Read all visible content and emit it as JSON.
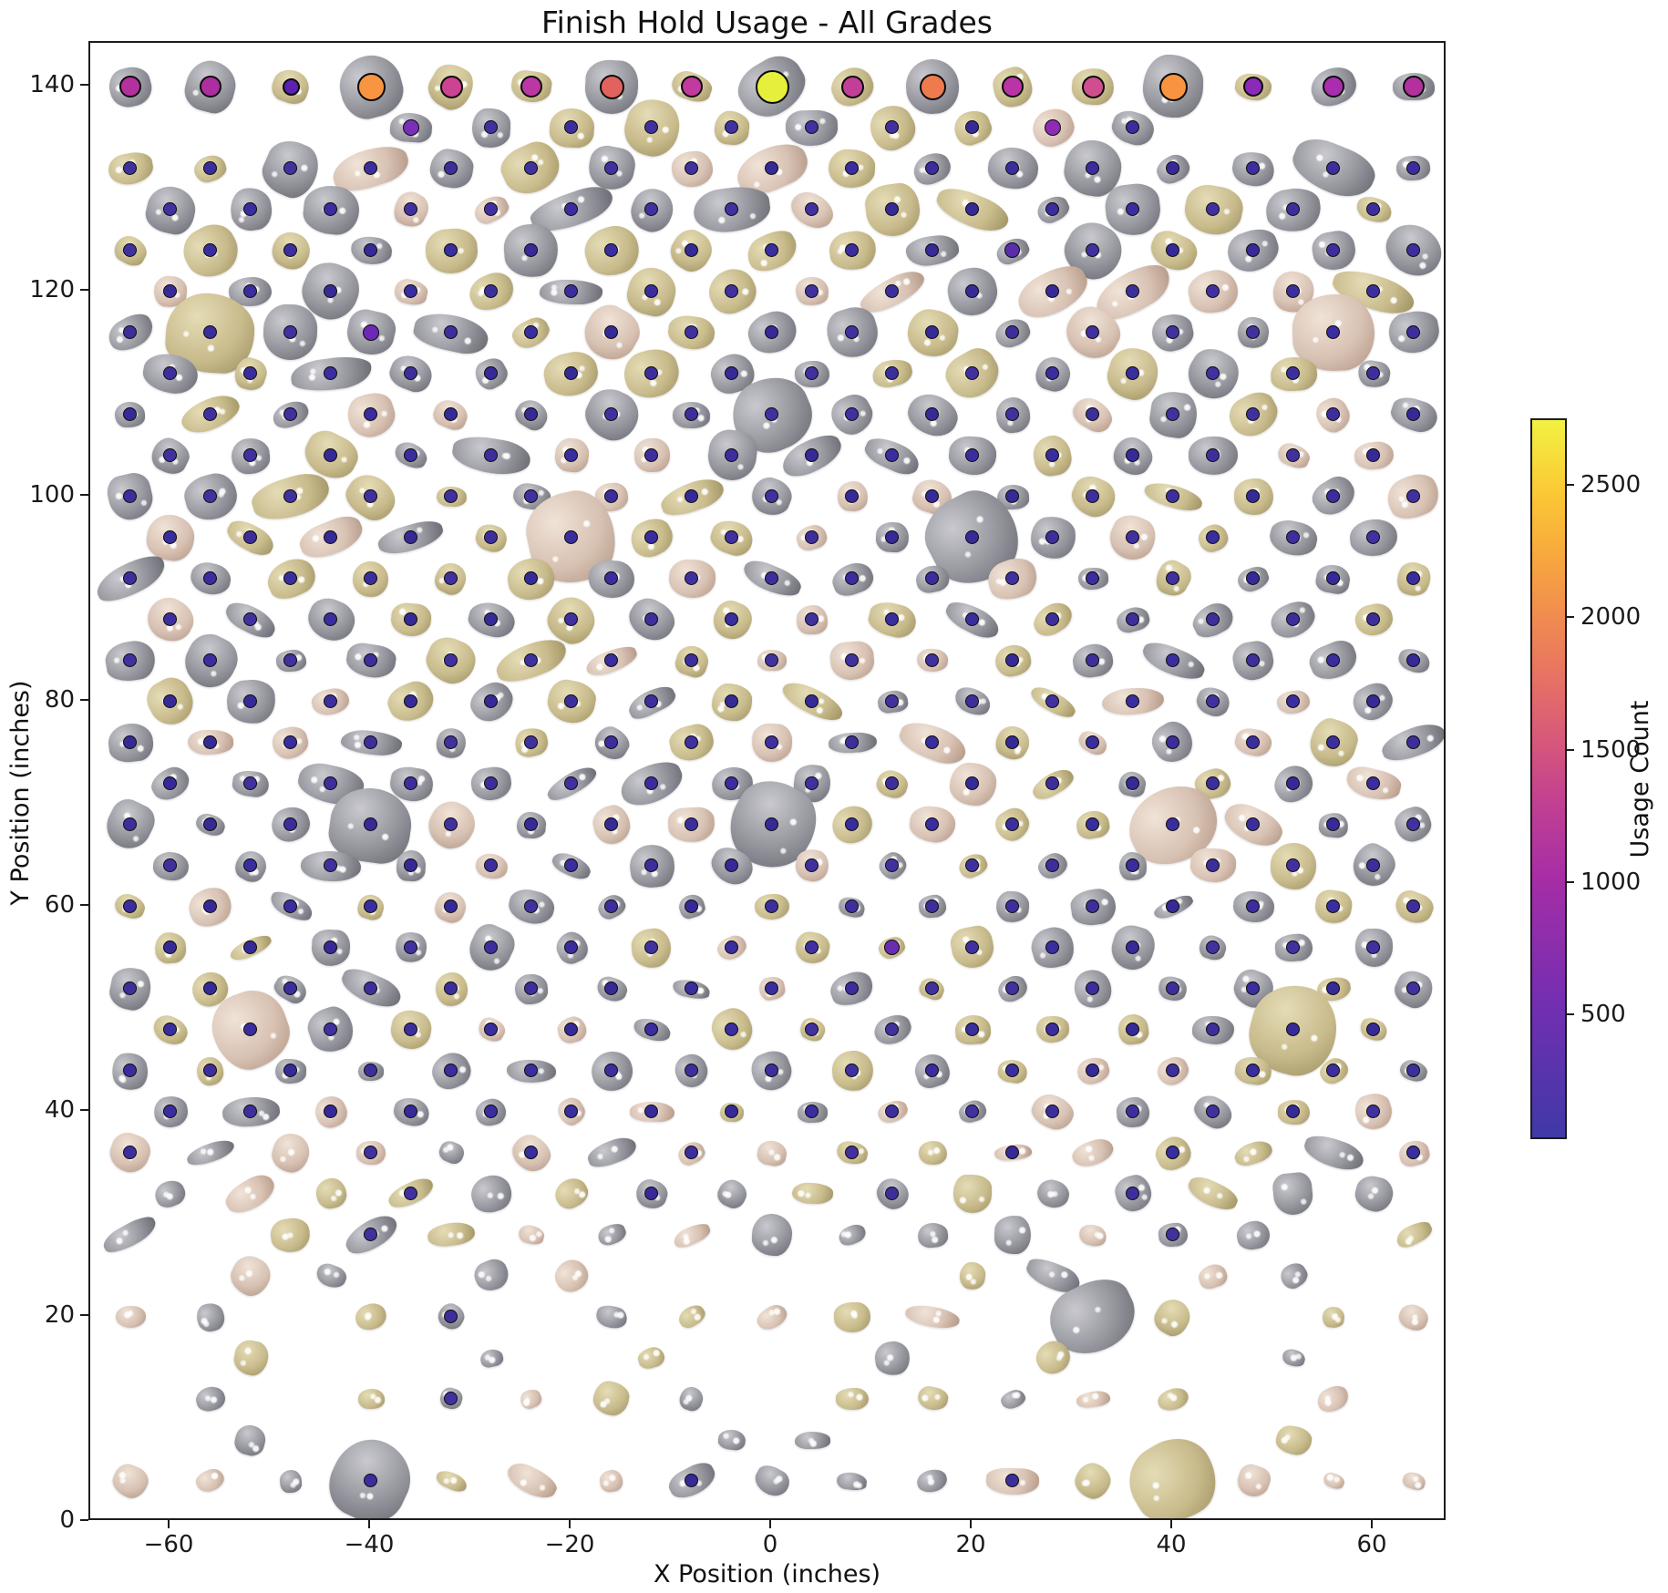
{
  "chart_data": {
    "type": "scatter",
    "title": "Finish Hold Usage - All Grades",
    "xlabel": "X Position (inches)",
    "ylabel": "Y Position (inches)",
    "xlim": [
      -68,
      67.5
    ],
    "ylim": [
      0,
      144
    ],
    "x_ticks": [
      -60,
      -40,
      -20,
      0,
      20,
      40,
      60
    ],
    "y_ticks": [
      0,
      20,
      40,
      60,
      80,
      100,
      120,
      140
    ],
    "grid": false,
    "colorbar": {
      "label": "Usage Count",
      "ticks": [
        500,
        1000,
        1500,
        2000,
        2500
      ],
      "vmin": 30,
      "vmax": 2750,
      "gradient": [
        [
          0,
          "#3f39a6"
        ],
        [
          0.18,
          "#712fb2"
        ],
        [
          0.36,
          "#a62da6"
        ],
        [
          0.47,
          "#c24191"
        ],
        [
          0.54,
          "#d4547e"
        ],
        [
          0.63,
          "#e56f66"
        ],
        [
          0.72,
          "#f08a50"
        ],
        [
          0.82,
          "#f8ab3c"
        ],
        [
          0.9,
          "#fbc935"
        ],
        [
          1,
          "#f2f241"
        ]
      ]
    },
    "hold_palette": {
      "gray": {
        "base": "#94949c",
        "light": "#c9c9cf",
        "dark": "#66666f"
      },
      "tan": {
        "base": "#c8bb8c",
        "light": "#e5dcb6",
        "dark": "#9d8f5e"
      },
      "pink": {
        "base": "#d7c1b2",
        "light": "#f0e3d7",
        "dark": "#b09381"
      }
    },
    "dot_colors": [
      "#3a2d9d",
      "#362a97",
      "#41319f",
      "#3d2f9b"
    ],
    "dot_edge_color": "#0b0b0b",
    "finish_holds": [
      {
        "x": -64,
        "y": 140,
        "usage": 950,
        "color": "#b5309f",
        "r": 10,
        "hold": "gray",
        "size": 46
      },
      {
        "x": -56,
        "y": 140,
        "usage": 900,
        "color": "#ad2f9f",
        "r": 10,
        "hold": "gray",
        "size": 54
      },
      {
        "x": -48,
        "y": 140,
        "usage": 420,
        "color": "#5b21b0",
        "r": 7.5,
        "hold": "tan",
        "size": 40
      },
      {
        "x": -40,
        "y": 140,
        "usage": 2100,
        "color": "#f89541",
        "r": 13.5,
        "hold": "gray",
        "size": 68
      },
      {
        "x": -32,
        "y": 140,
        "usage": 1200,
        "color": "#cc4394",
        "r": 10.5,
        "hold": "tan",
        "size": 46
      },
      {
        "x": -24,
        "y": 140,
        "usage": 1000,
        "color": "#bb37a4",
        "r": 10,
        "hold": "tan",
        "size": 44
      },
      {
        "x": -16,
        "y": 140,
        "usage": 1600,
        "color": "#e2635e",
        "r": 11.5,
        "hold": "gray",
        "size": 58
      },
      {
        "x": -8,
        "y": 140,
        "usage": 1050,
        "color": "#c13a9e",
        "r": 10,
        "hold": "tan",
        "size": 44
      },
      {
        "x": 0,
        "y": 140,
        "usage": 2750,
        "color": "#e6ef3c",
        "r": 16.5,
        "hold": "gray",
        "size": 74
      },
      {
        "x": 8,
        "y": 140,
        "usage": 1100,
        "color": "#c33e97",
        "r": 10.5,
        "hold": "tan",
        "size": 46
      },
      {
        "x": 16,
        "y": 140,
        "usage": 1800,
        "color": "#ee7b4e",
        "r": 12.5,
        "hold": "gray",
        "size": 58
      },
      {
        "x": 24,
        "y": 140,
        "usage": 1000,
        "color": "#b934a6",
        "r": 10,
        "hold": "tan",
        "size": 42
      },
      {
        "x": 32,
        "y": 140,
        "usage": 1300,
        "color": "#d04e90",
        "r": 10.5,
        "hold": "tan",
        "size": 46
      },
      {
        "x": 40,
        "y": 140,
        "usage": 2050,
        "color": "#f89440",
        "r": 13.5,
        "hold": "gray",
        "size": 66
      },
      {
        "x": 48,
        "y": 140,
        "usage": 650,
        "color": "#8b2ab8",
        "r": 9,
        "hold": "tan",
        "size": 40
      },
      {
        "x": 56,
        "y": 140,
        "usage": 950,
        "color": "#ab2daf",
        "r": 10,
        "hold": "gray",
        "size": 50
      },
      {
        "x": 64,
        "y": 140,
        "usage": 950,
        "color": "#b5309f",
        "r": 10,
        "hold": "gray",
        "size": 46
      }
    ],
    "grid_rows": [
      {
        "y": 136,
        "xs": [
          -36,
          -28,
          -20,
          -12,
          -4,
          4,
          12,
          20,
          28,
          36
        ],
        "dots": "all",
        "med": [
          [
            -36,
            "#7b2fb6",
            8,
            560
          ],
          [
            28,
            "#8e2bb2",
            8,
            620
          ]
        ]
      },
      {
        "y": 132,
        "xs": "E",
        "dots": "all"
      },
      {
        "y": 128,
        "xs": "O",
        "dots": "all"
      },
      {
        "y": 124,
        "xs": "E",
        "dots": "all",
        "med": [
          [
            24,
            "#5a2daa",
            7.5,
            430
          ]
        ]
      },
      {
        "y": 120,
        "xs": "O",
        "dots": "all"
      },
      {
        "y": 116,
        "xs": "E",
        "dots": "all",
        "med": [
          [
            -40,
            "#6d28b5",
            8,
            500
          ]
        ]
      },
      {
        "y": 112,
        "xs": "O",
        "dots": "all"
      },
      {
        "y": 108,
        "xs": "E",
        "dots": "all"
      },
      {
        "y": 104,
        "xs": "O",
        "dots": "all"
      },
      {
        "y": 100,
        "xs": "E",
        "dots": "all"
      },
      {
        "y": 96,
        "xs": "O",
        "dots": "all"
      },
      {
        "y": 92,
        "xs": "E",
        "dots": "all"
      },
      {
        "y": 88,
        "xs": "O",
        "dots": "all"
      },
      {
        "y": 84,
        "xs": "E",
        "dots": "all"
      },
      {
        "y": 80,
        "xs": "O",
        "dots": "all"
      },
      {
        "y": 76,
        "xs": "E",
        "dots": "all"
      },
      {
        "y": 72,
        "xs": "O",
        "dots": "all"
      },
      {
        "y": 68,
        "xs": "E",
        "dots": "all"
      },
      {
        "y": 64,
        "xs": "O",
        "dots": "all"
      },
      {
        "y": 60,
        "xs": "E",
        "dots": "all"
      },
      {
        "y": 56,
        "xs": "O",
        "dots": "all",
        "med": [
          [
            12,
            "#6a2db0",
            7.5,
            480
          ]
        ]
      },
      {
        "y": 52,
        "xs": "E",
        "dots": "all"
      },
      {
        "y": 48,
        "xs": "O",
        "dots": "all"
      },
      {
        "y": 44,
        "xs": "E",
        "dots": "all"
      },
      {
        "y": 40,
        "xs": "O",
        "dots": "all"
      },
      {
        "y": 36,
        "xs": "E",
        "dots": [
          -64,
          -40,
          -24,
          -8,
          8,
          24,
          40,
          64
        ]
      },
      {
        "y": 32,
        "xs": "O",
        "dots": [
          -36,
          -12,
          12,
          36
        ]
      },
      {
        "y": 28,
        "xs": [
          -64,
          -48,
          -40,
          -32,
          -24,
          -16,
          -8,
          0,
          8,
          16,
          24,
          32,
          40,
          48,
          64
        ],
        "dots": [
          -40,
          40
        ]
      },
      {
        "y": 24,
        "xs": [
          -52,
          -44,
          -28,
          -20,
          20,
          28,
          44,
          52
        ],
        "dots": []
      },
      {
        "y": 20,
        "xs": [
          -64,
          -56,
          -40,
          -32,
          -16,
          -8,
          0,
          8,
          16,
          32,
          40,
          56,
          64
        ],
        "dots": [
          -32
        ]
      },
      {
        "y": 16,
        "xs": [
          -52,
          -28,
          -12,
          12,
          28,
          52
        ],
        "dots": []
      },
      {
        "y": 12,
        "xs": [
          -56,
          -40,
          -32,
          -24,
          -16,
          -8,
          8,
          16,
          24,
          32,
          40,
          56
        ],
        "dots": [
          -32
        ]
      },
      {
        "y": 8,
        "xs": [
          -52,
          -4,
          4,
          52
        ],
        "dots": []
      },
      {
        "y": 4,
        "xs": "E",
        "dots": [
          -40,
          -8,
          24
        ]
      }
    ],
    "column_sets": {
      "E": [
        -64,
        -56,
        -48,
        -40,
        -32,
        -24,
        -16,
        -8,
        0,
        8,
        16,
        24,
        32,
        40,
        48,
        56,
        64
      ],
      "O": [
        -60,
        -52,
        -44,
        -36,
        -28,
        -20,
        -12,
        -4,
        4,
        12,
        20,
        28,
        36,
        44,
        52,
        60
      ]
    },
    "big_holds": [
      [
        0,
        108
      ],
      [
        0,
        68
      ],
      [
        -44,
        92
      ],
      [
        44,
        92
      ],
      [
        -40,
        68
      ],
      [
        40,
        68
      ],
      [
        -56,
        116
      ],
      [
        56,
        116
      ],
      [
        -20,
        96
      ],
      [
        20,
        96
      ],
      [
        -20,
        44
      ],
      [
        20,
        44
      ],
      [
        -52,
        48
      ],
      [
        52,
        48
      ],
      [
        32,
        20
      ],
      [
        -40,
        4
      ],
      [
        40,
        4
      ]
    ]
  }
}
